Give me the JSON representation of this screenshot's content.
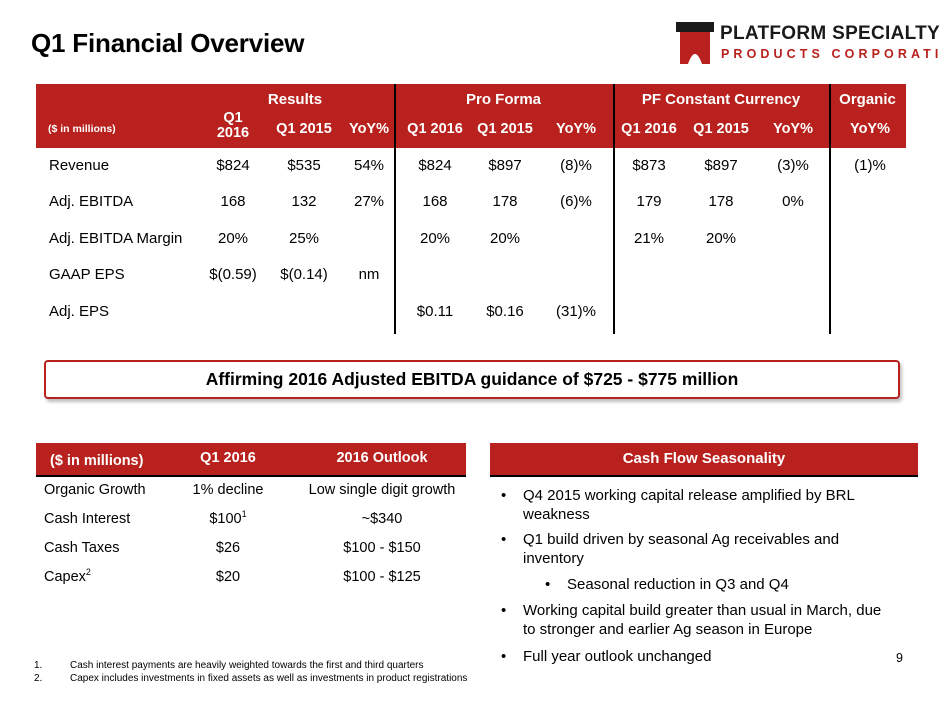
{
  "title": "Q1 Financial Overview",
  "logo": {
    "name": "PLATFORM SPECIALTY",
    "sub": "PRODUCTS CORPORATION",
    "color": "#b8211d"
  },
  "results_table": {
    "units": "($ in millions)",
    "groups": [
      "Results",
      "Pro Forma",
      "PF Constant Currency",
      "Organic"
    ],
    "columns": [
      "Q1 2016",
      "Q1 2015",
      "YoY%",
      "Q1 2016",
      "Q1 2015",
      "YoY%",
      "Q1 2016",
      "Q1 2015",
      "YoY%",
      "YoY%"
    ],
    "rows": [
      {
        "label": "Revenue",
        "values": [
          "$824",
          "$535",
          "54%",
          "$824",
          "$897",
          "(8)%",
          "$873",
          "$897",
          "(3)%",
          "(1)%"
        ]
      },
      {
        "label": "Adj. EBITDA",
        "values": [
          "168",
          "132",
          "27%",
          "168",
          "178",
          "(6)%",
          "179",
          "178",
          "0%",
          ""
        ]
      },
      {
        "label": "Adj. EBITDA Margin",
        "values": [
          "20%",
          "25%",
          "",
          "20%",
          "20%",
          "",
          "21%",
          "20%",
          "",
          ""
        ]
      },
      {
        "label": "GAAP EPS",
        "values": [
          "$(0.59)",
          "$(0.14)",
          "nm",
          "",
          "",
          "",
          "",
          "",
          "",
          ""
        ]
      },
      {
        "label": "Adj. EPS",
        "values": [
          "",
          "",
          "",
          "$0.11",
          "$0.16",
          "(31)%",
          "",
          "",
          "",
          ""
        ]
      }
    ]
  },
  "guidance": "Affirming 2016 Adjusted EBITDA guidance of $725 - $775 million",
  "outlook_table": {
    "units": "($ in millions)",
    "columns": [
      "Q1 2016",
      "2016 Outlook"
    ],
    "rows": [
      {
        "label": "Organic Growth",
        "label_sup": "",
        "q1": "1% decline",
        "q1_sup": "",
        "outlook": "Low single digit growth"
      },
      {
        "label": "Cash Interest",
        "label_sup": "",
        "q1": "$100",
        "q1_sup": "1",
        "outlook": "~$340"
      },
      {
        "label": "Cash Taxes",
        "label_sup": "",
        "q1": "$26",
        "q1_sup": "",
        "outlook": "$100 - $150"
      },
      {
        "label": "Capex",
        "label_sup": "2",
        "q1": "$20",
        "q1_sup": "",
        "outlook": "$100 - $125"
      }
    ]
  },
  "cash_flow": {
    "title": "Cash Flow Seasonality",
    "bullets": [
      {
        "level": 1,
        "lines": [
          "Q4 2015 working capital release amplified by BRL",
          "weakness"
        ]
      },
      {
        "level": 1,
        "lines": [
          "Q1 build driven by seasonal Ag receivables and",
          "inventory"
        ]
      },
      {
        "level": 2,
        "lines": [
          "Seasonal reduction in Q3 and Q4"
        ]
      },
      {
        "level": 1,
        "lines": [
          "Working capital build greater than usual in March, due",
          "to stronger and earlier Ag season in Europe"
        ]
      },
      {
        "level": 1,
        "lines": [
          "Full year outlook unchanged"
        ]
      }
    ]
  },
  "footnotes": [
    {
      "num": "1.",
      "text": "Cash interest payments are heavily weighted towards the first and third quarters"
    },
    {
      "num": "2.",
      "text": "Capex includes investments in fixed assets as well as investments in product registrations"
    }
  ],
  "page_number": "9"
}
